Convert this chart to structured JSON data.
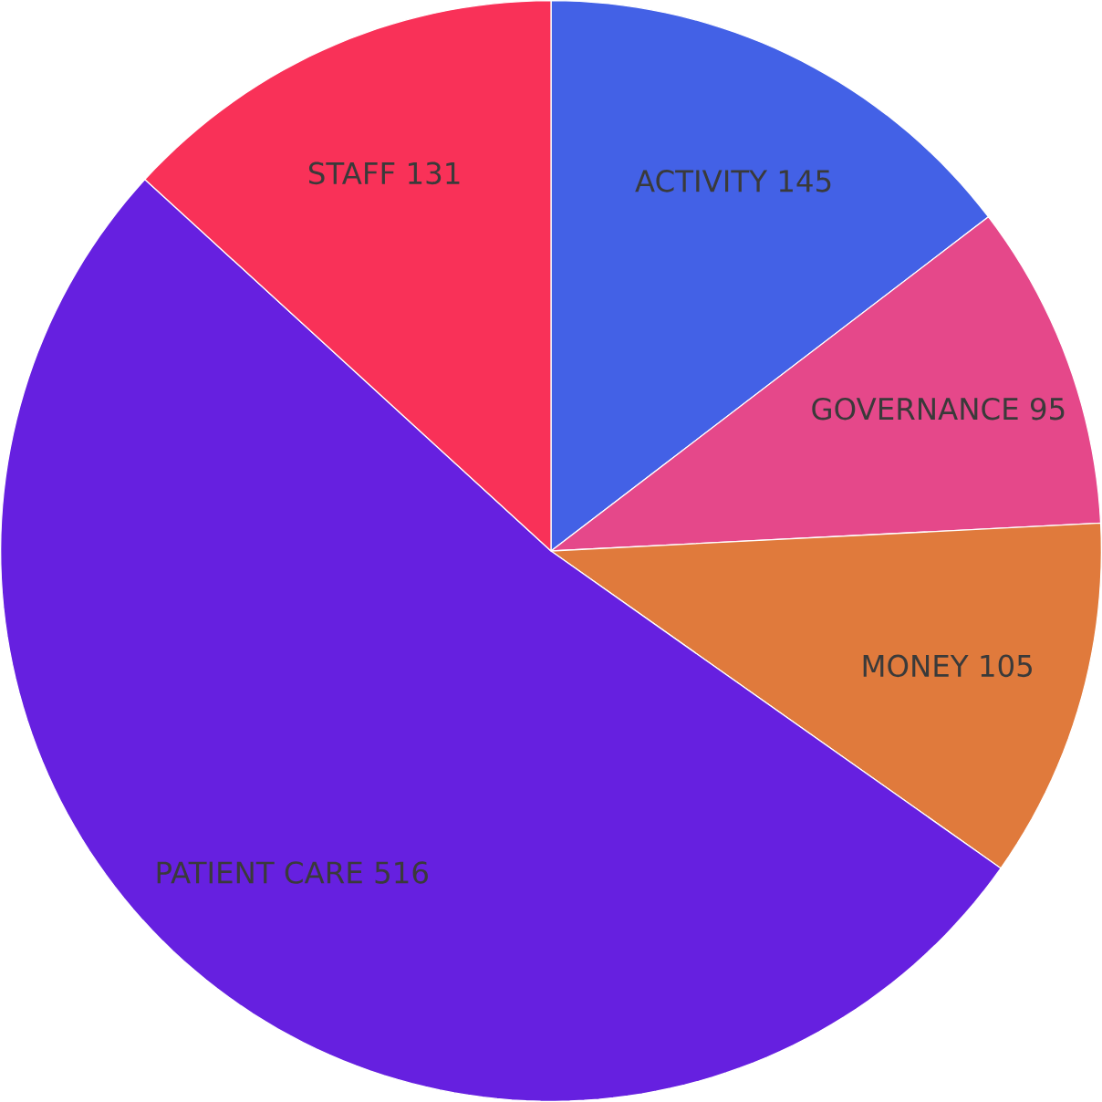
{
  "chart_data": {
    "type": "pie",
    "categories": [
      "ACTIVITY",
      "GOVERNANCE",
      "MONEY",
      "PATIENT CARE",
      "STAFF"
    ],
    "values": [
      145,
      95,
      105,
      516,
      131
    ],
    "colors": [
      "#4361e6",
      "#e5488a",
      "#e07a3c",
      "#6620e0",
      "#f93158"
    ],
    "data_labels": true
  }
}
